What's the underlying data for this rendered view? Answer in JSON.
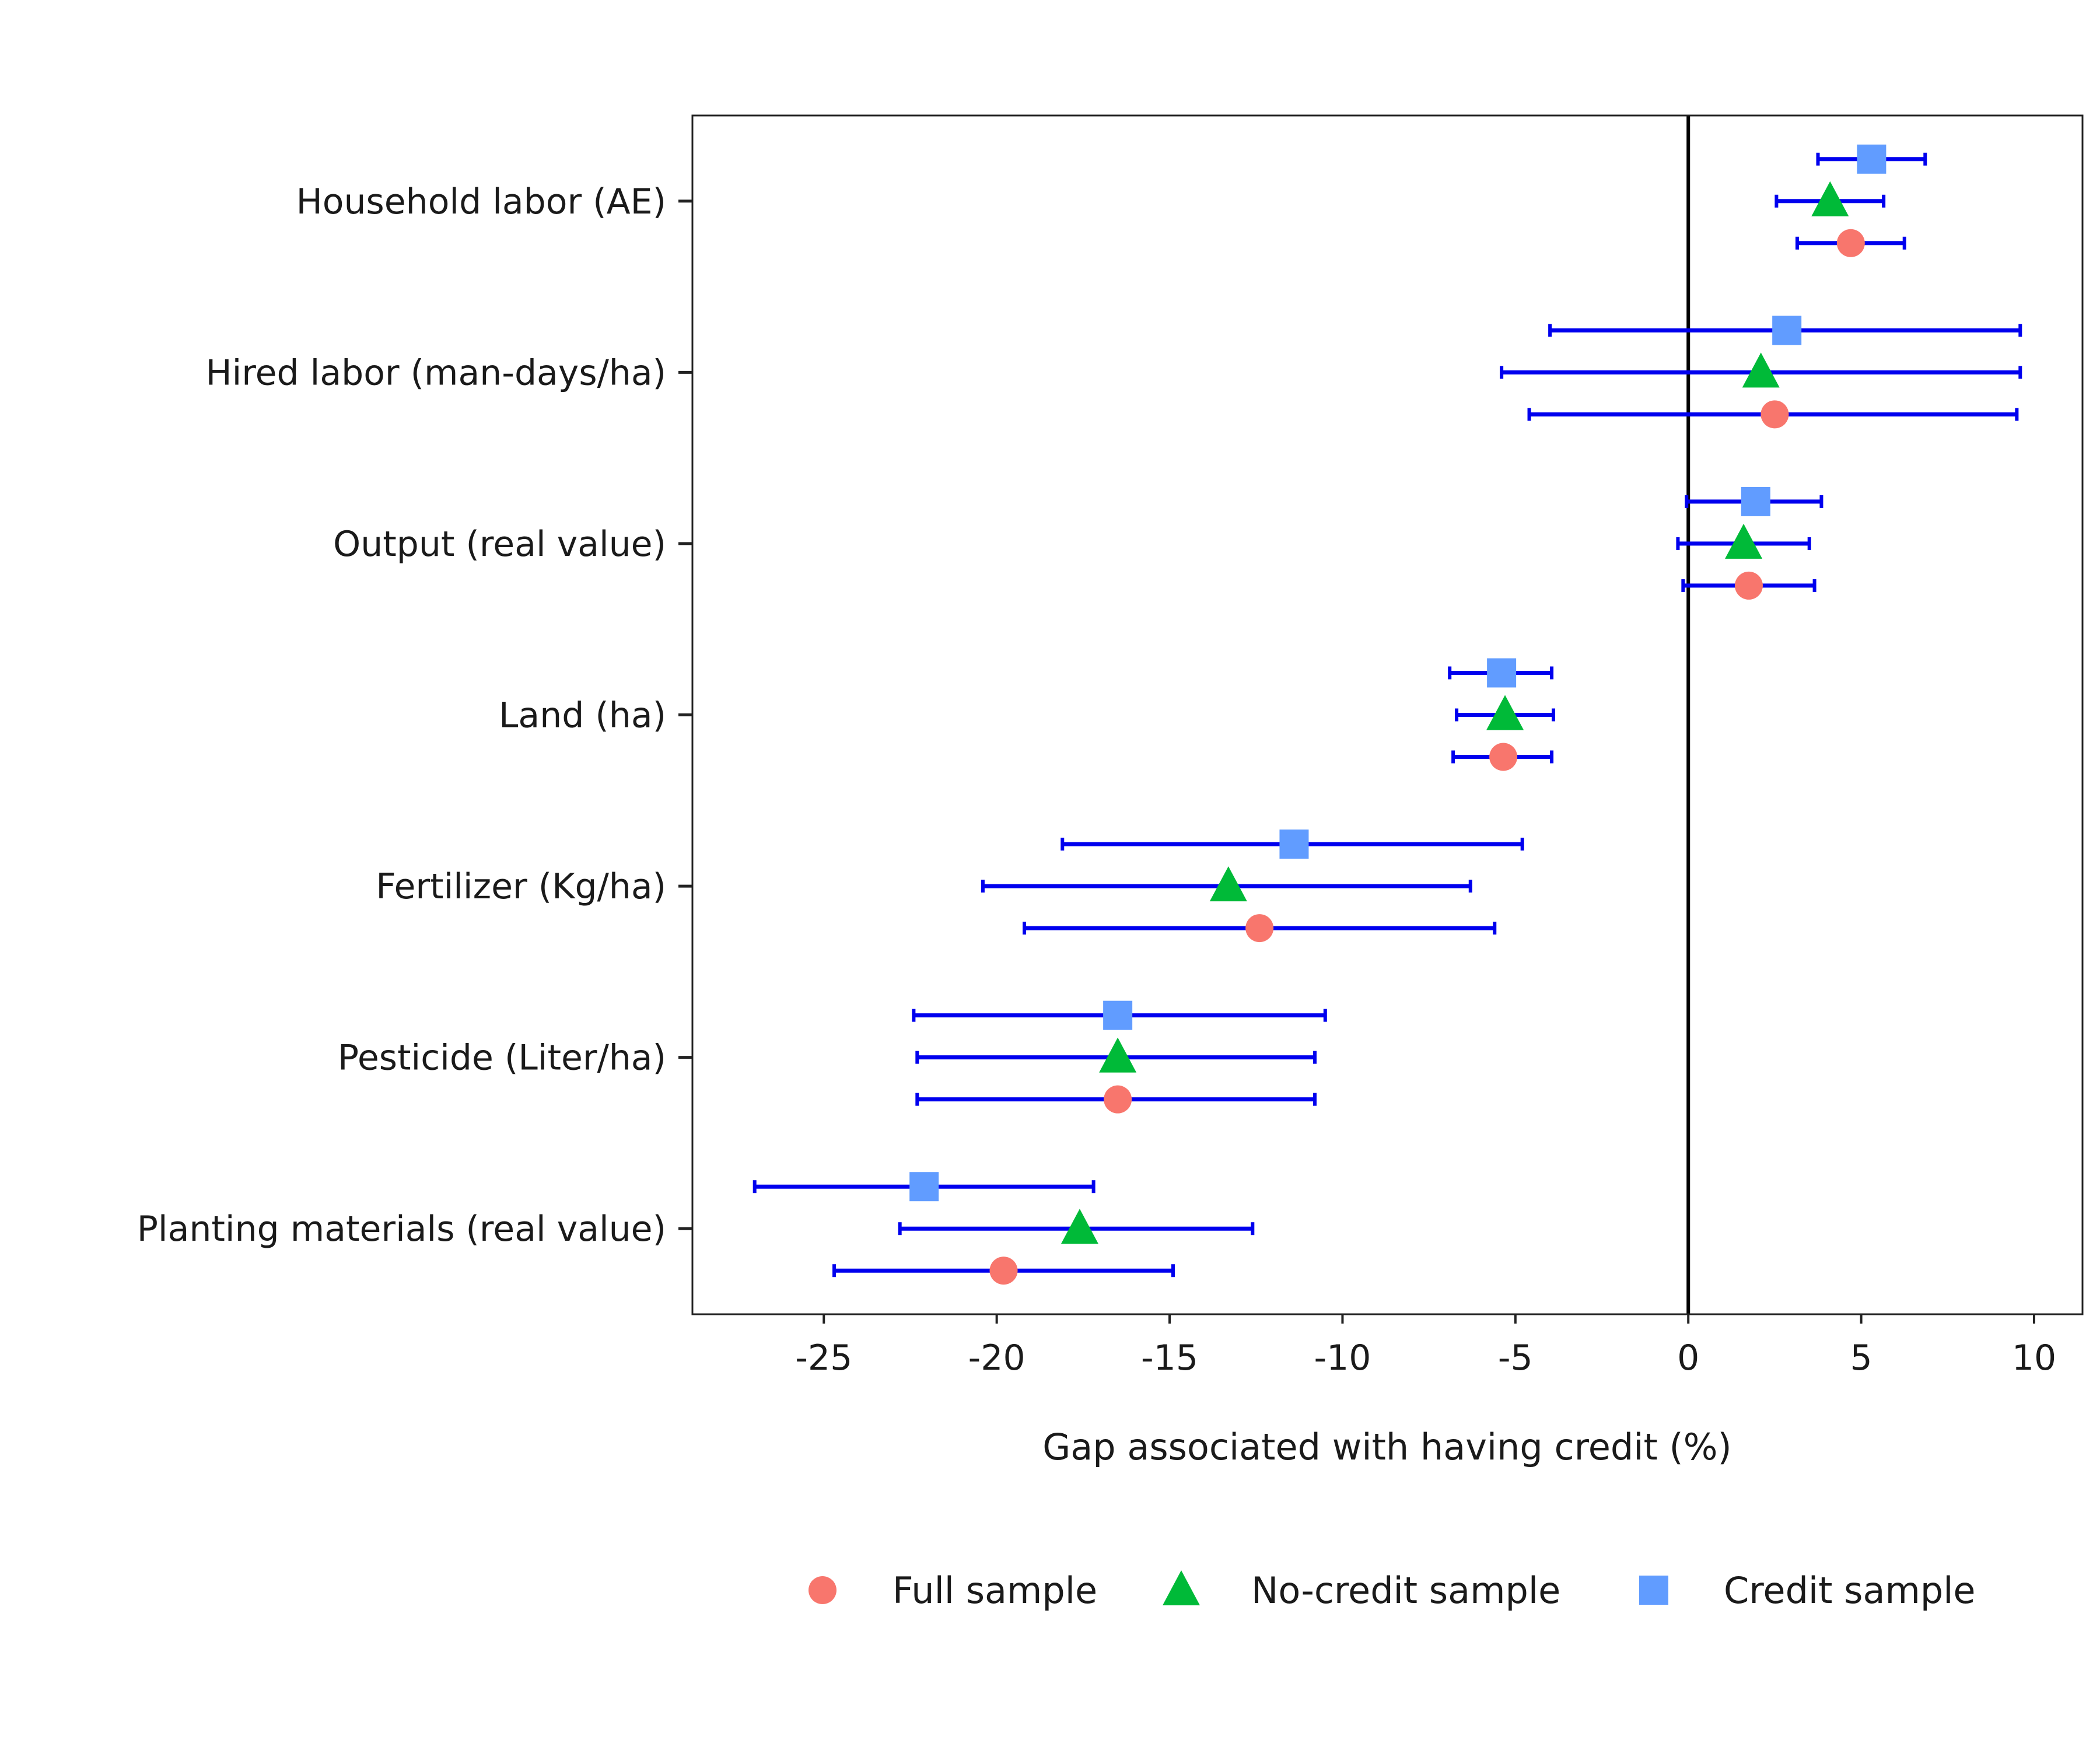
{
  "chart_data": {
    "type": "scatter",
    "subtype": "coefficient plot with horizontal confidence intervals",
    "title": "",
    "xlabel": "Gap associated with having credit (%)",
    "ylabel": "",
    "xlim": [
      -28.8,
      11.4
    ],
    "x_ticks": [
      -25,
      -20,
      -15,
      -10,
      -5,
      0,
      5,
      10
    ],
    "x_tick_labels": [
      "-25",
      "-20",
      "-15",
      "-10",
      "-5",
      "0",
      "5",
      "10"
    ],
    "reference_line_x": 0,
    "grid": false,
    "legend_position": "bottom",
    "categories": [
      "Household labor (AE)",
      "Hired labor (man-days/ha)",
      "Output (real value)",
      "Land (ha)",
      "Fertilizer (Kg/ha)",
      "Pesticide (Liter/ha)",
      "Planting materials (real value)"
    ],
    "series": [
      {
        "name": "Full sample",
        "marker": "circle",
        "color": "#F8766D",
        "values": [
          4.7,
          2.5,
          1.75,
          -5.35,
          -12.4,
          -16.5,
          -19.8
        ],
        "ci_low": [
          3.15,
          -4.6,
          -0.15,
          -6.8,
          -19.2,
          -22.3,
          -24.7
        ],
        "ci_high": [
          6.25,
          9.5,
          3.65,
          -3.95,
          -5.6,
          -10.8,
          -14.9
        ]
      },
      {
        "name": "No-credit sample",
        "marker": "triangle",
        "color": "#00BA38",
        "values": [
          4.1,
          2.1,
          1.6,
          -5.3,
          -13.3,
          -16.5,
          -17.6
        ],
        "ci_low": [
          2.55,
          -5.4,
          -0.3,
          -6.7,
          -20.4,
          -22.3,
          -22.8
        ],
        "ci_high": [
          5.65,
          9.6,
          3.5,
          -3.9,
          -6.3,
          -10.8,
          -12.6
        ]
      },
      {
        "name": "Credit sample",
        "marker": "square",
        "color": "#619CFF",
        "values": [
          5.3,
          2.85,
          1.95,
          -5.4,
          -11.4,
          -16.5,
          -22.1
        ],
        "ci_low": [
          3.75,
          -4.0,
          -0.05,
          -6.9,
          -18.1,
          -22.4,
          -27.0
        ],
        "ci_high": [
          6.85,
          9.6,
          3.85,
          -3.95,
          -4.8,
          -10.5,
          -17.2
        ]
      }
    ],
    "error_bar_color": "#0000EE"
  }
}
